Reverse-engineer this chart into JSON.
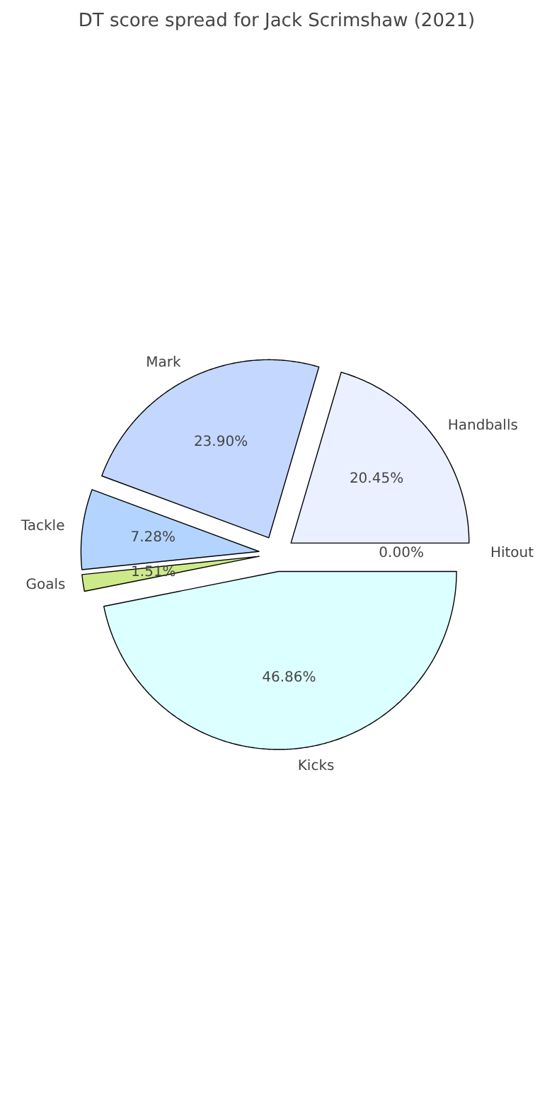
{
  "chart_data": {
    "type": "pie",
    "title": "DT score spread for Jack Scrimshaw (2021)",
    "categories": [
      "Handballs",
      "Mark",
      "Tackle",
      "Goals",
      "Kicks",
      "Hitout"
    ],
    "values": [
      20.45,
      23.9,
      7.28,
      1.51,
      46.86,
      0.0
    ],
    "colors": [
      "#eaf0ff",
      "#c4d7ff",
      "#b3d4ff",
      "#cdea8a",
      "#dcffff",
      "#ffffff"
    ],
    "value_labels": [
      "20.45%",
      "23.90%",
      "7.28%",
      "1.51%",
      "46.86%",
      "0.00%"
    ]
  }
}
